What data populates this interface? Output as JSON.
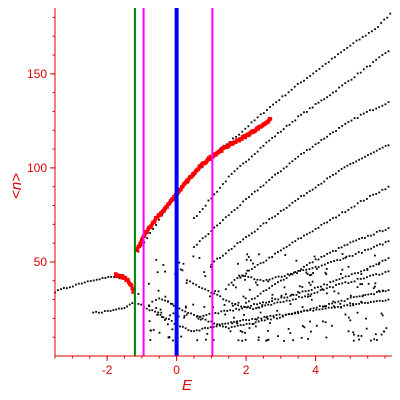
{
  "chart_data": {
    "type": "scatter",
    "title": "",
    "xlabel": "E",
    "ylabel": "<n>",
    "xlim": [
      -3.5,
      6.2
    ],
    "ylim": [
      0,
      185
    ],
    "x_ticks": [
      -2,
      0,
      2,
      4
    ],
    "x_tick_labels": [
      "-2",
      "0",
      "2",
      "4"
    ],
    "y_ticks": [
      50,
      100,
      150
    ],
    "y_tick_labels": [
      "50",
      "100",
      "150"
    ],
    "grid": false,
    "colors": {
      "axis": "#e00000",
      "points": "#000000",
      "highlight": "#ff0000",
      "line_green": "#008000",
      "line_magenta": "#ff00ff",
      "line_blue": "#0000ff"
    },
    "vertical_lines": [
      {
        "x": -1.2,
        "color": "#008000",
        "width": 2
      },
      {
        "x": -0.95,
        "color": "#ff00ff",
        "width": 2
      },
      {
        "x": 0.0,
        "color": "#0000ff",
        "width": 4
      },
      {
        "x": 1.03,
        "color": "#ff00ff",
        "width": 2
      }
    ],
    "series": [
      {
        "color": "#000000",
        "kind": "curves",
        "curves": [
          [
            [
              -1.1,
              56
            ],
            [
              0.0,
              86
            ],
            [
              1.0,
              106
            ],
            [
              1.8,
              118
            ],
            [
              2.6,
              131
            ],
            [
              3.4,
              143
            ],
            [
              4.2,
              154
            ],
            [
              5.0,
              165
            ],
            [
              5.8,
              175
            ],
            [
              6.15,
              182
            ]
          ],
          [
            [
              0.5,
              73
            ],
            [
              1.5,
              95
            ],
            [
              2.5,
              112
            ],
            [
              3.5,
              127
            ],
            [
              4.5,
              140
            ],
            [
              5.3,
              151
            ],
            [
              6.1,
              162
            ]
          ],
          [
            [
              0.5,
              58
            ],
            [
              1.5,
              75
            ],
            [
              2.5,
              91
            ],
            [
              3.5,
              106
            ],
            [
              4.5,
              119
            ],
            [
              5.3,
              128
            ],
            [
              6.1,
              135
            ]
          ],
          [
            [
              1.0,
              49
            ],
            [
              2.0,
              63
            ],
            [
              3.0,
              77
            ],
            [
              4.0,
              90
            ],
            [
              5.0,
              102
            ],
            [
              6.1,
              112
            ]
          ],
          [
            [
              1.5,
              38
            ],
            [
              2.5,
              50
            ],
            [
              3.5,
              62
            ],
            [
              4.5,
              73
            ],
            [
              5.3,
              82
            ],
            [
              6.1,
              90
            ]
          ],
          [
            [
              2.0,
              28
            ],
            [
              3.0,
              40
            ],
            [
              4.0,
              51
            ],
            [
              5.0,
              60
            ],
            [
              6.1,
              68
            ]
          ],
          [
            [
              -3.5,
              34
            ],
            [
              -2.9,
              38
            ],
            [
              -2.3,
              41
            ],
            [
              -1.8,
              42
            ],
            [
              -1.5,
              41
            ],
            [
              -1.3,
              37
            ],
            [
              -1.1,
              33
            ]
          ],
          [
            [
              -2.4,
              23
            ],
            [
              -1.9,
              24
            ],
            [
              -1.5,
              26
            ],
            [
              -1.2,
              29
            ]
          ],
          [
            [
              -1.1,
              28
            ],
            [
              -0.7,
              24
            ],
            [
              -0.3,
              20
            ],
            [
              0.1,
              16
            ],
            [
              0.5,
              13
            ],
            [
              0.9,
              15
            ],
            [
              1.4,
              17
            ],
            [
              2.0,
              19
            ],
            [
              2.7,
              21
            ],
            [
              3.4,
              23
            ],
            [
              4.2,
              25
            ],
            [
              5.0,
              27
            ],
            [
              6.1,
              30
            ]
          ],
          [
            [
              -0.5,
              31
            ],
            [
              0.0,
              26
            ],
            [
              0.5,
              22
            ],
            [
              1.0,
              18
            ],
            [
              1.5,
              15
            ],
            [
              2.1,
              17
            ],
            [
              2.8,
              20
            ],
            [
              3.5,
              23
            ],
            [
              4.3,
              27
            ],
            [
              5.1,
              31
            ],
            [
              6.1,
              35
            ]
          ],
          [
            [
              0.3,
              40
            ],
            [
              1.0,
              34
            ],
            [
              1.6,
              28
            ],
            [
              2.2,
              25
            ],
            [
              2.9,
              28
            ],
            [
              3.7,
              32
            ],
            [
              4.5,
              37
            ],
            [
              5.3,
              41
            ],
            [
              6.1,
              45
            ]
          ],
          [
            [
              0.6,
              21
            ],
            [
              1.2,
              23
            ],
            [
              1.8,
              25
            ],
            [
              2.4,
              28
            ],
            [
              3.1,
              31
            ],
            [
              3.8,
              35
            ],
            [
              4.6,
              40
            ],
            [
              5.4,
              46
            ],
            [
              6.1,
              52
            ]
          ],
          [
            [
              1.8,
              43
            ],
            [
              2.5,
              40
            ],
            [
              3.2,
              43
            ],
            [
              4.0,
              47
            ],
            [
              4.8,
              52
            ],
            [
              5.6,
              57
            ],
            [
              6.1,
              61
            ]
          ]
        ],
        "scatter_region": {
          "x": [
            -0.8,
            6.1
          ],
          "y": [
            8,
            55
          ]
        }
      },
      {
        "color": "#ff0000",
        "kind": "curve",
        "curves": [
          [
            [
              -1.15,
              56
            ],
            [
              -0.9,
              65
            ],
            [
              -0.6,
              73
            ],
            [
              -0.3,
              79
            ],
            [
              0.0,
              86
            ],
            [
              0.3,
              93
            ],
            [
              0.7,
              101
            ],
            [
              1.0,
              106
            ],
            [
              1.5,
              112
            ],
            [
              2.0,
              117
            ],
            [
              2.5,
              123
            ],
            [
              2.7,
              126
            ]
          ]
        ]
      },
      {
        "color": "#ff0000",
        "kind": "curve",
        "curves": [
          [
            [
              -1.75,
              43
            ],
            [
              -1.55,
              42
            ],
            [
              -1.4,
              40
            ],
            [
              -1.3,
              37
            ],
            [
              -1.25,
              34
            ]
          ]
        ]
      }
    ]
  }
}
